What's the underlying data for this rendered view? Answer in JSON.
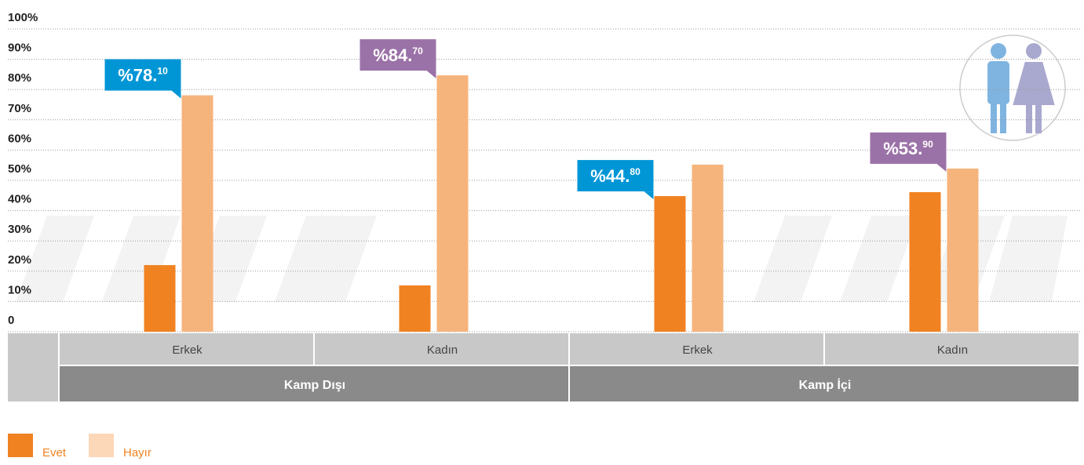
{
  "chart_data": {
    "type": "grouped_bar",
    "categories": [
      "Erkek",
      "Kadın",
      "Erkek",
      "Kadın"
    ],
    "groups": [
      "Kamp Dışı",
      "Kamp İçi"
    ],
    "series": [
      {
        "name": "Evet",
        "color": "#f08221",
        "values": [
          22.0,
          15.3,
          44.8,
          46.1
        ],
        "value_labels": [
          null,
          null,
          "%44.80",
          null
        ]
      },
      {
        "name": "Hayır",
        "color": "#f5b47c",
        "values": [
          78.1,
          84.7,
          55.2,
          53.9
        ],
        "value_labels": [
          "%78.10",
          "%84.70",
          null,
          "%53.90"
        ]
      }
    ],
    "label_colors": [
      "#0096d6",
      "#9b72a8",
      "#0096d6",
      "#9b72a8"
    ],
    "ylim": [
      0,
      100
    ],
    "yticks": [
      0,
      {
        "value": 10,
        "label": "10%"
      },
      {
        "value": 20,
        "label": "20%"
      },
      {
        "value": 30,
        "label": "30%"
      },
      {
        "value": 40,
        "label": "40%"
      },
      {
        "value": 50,
        "label": "50%"
      },
      {
        "value": 60,
        "label": "60%"
      },
      {
        "value": 70,
        "label": "70%"
      },
      {
        "value": 80,
        "label": "80%"
      },
      {
        "value": 90,
        "label": "90%"
      },
      {
        "value": 100,
        "label": "100%"
      }
    ],
    "grid": true
  }
}
